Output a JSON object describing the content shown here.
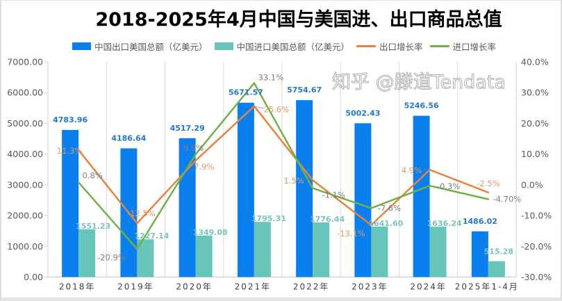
{
  "chart_data": {
    "type": "bar",
    "title": "2018-2025年4月中国与美国进、出口商品总值",
    "categories": [
      "2018年",
      "2019年",
      "2020年",
      "2021年",
      "2022年",
      "2023年",
      "2024年",
      "2025年1-4月"
    ],
    "series": [
      {
        "name": "中国出口美国总额（亿美元）",
        "type": "bar",
        "axis": "left",
        "color": "#0a7ff0",
        "label_color": "#2478cf",
        "values": [
          4783.96,
          4186.64,
          4517.29,
          5671.57,
          5754.67,
          5002.43,
          5246.56,
          1486.02
        ],
        "labels": [
          "4783.96",
          "4186.64",
          "4517.29",
          "5671.57",
          "5754.67",
          "5002.43",
          "5246.56",
          "1486.02"
        ]
      },
      {
        "name": "中国进口美国总额（亿美元）",
        "type": "bar",
        "axis": "left",
        "color": "#67c5b9",
        "label_color": "#78c4be",
        "values": [
          1551.23,
          1227.14,
          1349.08,
          1795.31,
          1776.44,
          1641.6,
          1636.24,
          515.28
        ],
        "labels": [
          "1551.23",
          "1227.14",
          "1349.08",
          "1795.31",
          "1776.44",
          "1641.60",
          "1636.24",
          "515.28"
        ]
      },
      {
        "name": "出口增长率",
        "type": "line",
        "axis": "right",
        "color": "#e8823c",
        "label_color": "#e49660",
        "values": [
          11.3,
          -12.5,
          7.9,
          25.6,
          1.5,
          -13.1,
          4.9,
          -2.5
        ],
        "labels": [
          "11.3%",
          "-12.5%",
          "7.9%",
          "25.6%",
          "1.5%",
          "-13.1%",
          "4.9%",
          "-2.5%"
        ]
      },
      {
        "name": "进口增长率",
        "type": "line",
        "axis": "right",
        "color": "#72b046",
        "label_color": "#7f7f7f",
        "values": [
          0.8,
          -20.9,
          9.9,
          33.1,
          -1.1,
          -7.6,
          -0.3,
          -4.7
        ],
        "labels": [
          "0.8%",
          "-20.9%",
          "9.9%",
          "33.1%",
          "-1.1%",
          "-7.6%",
          "-0.3%",
          "-4.70%"
        ]
      }
    ],
    "y_left": {
      "label": "",
      "ylim": [
        0,
        7000
      ],
      "ticks": [
        "0.00",
        "1000.00",
        "2000.00",
        "3000.00",
        "4000.00",
        "5000.00",
        "6000.00",
        "7000.00"
      ]
    },
    "y_right": {
      "label": "",
      "ylim": [
        -30,
        40
      ],
      "ticks": [
        "-30.0%",
        "-20.0%",
        "-10.0%",
        "0.0%",
        "10.0%",
        "20.0%",
        "30.0%",
        "40.0%"
      ]
    },
    "xlabel": "",
    "grid": "vertical category separators",
    "legend_position": "top"
  },
  "watermark": "知乎 @滕道Tendata"
}
